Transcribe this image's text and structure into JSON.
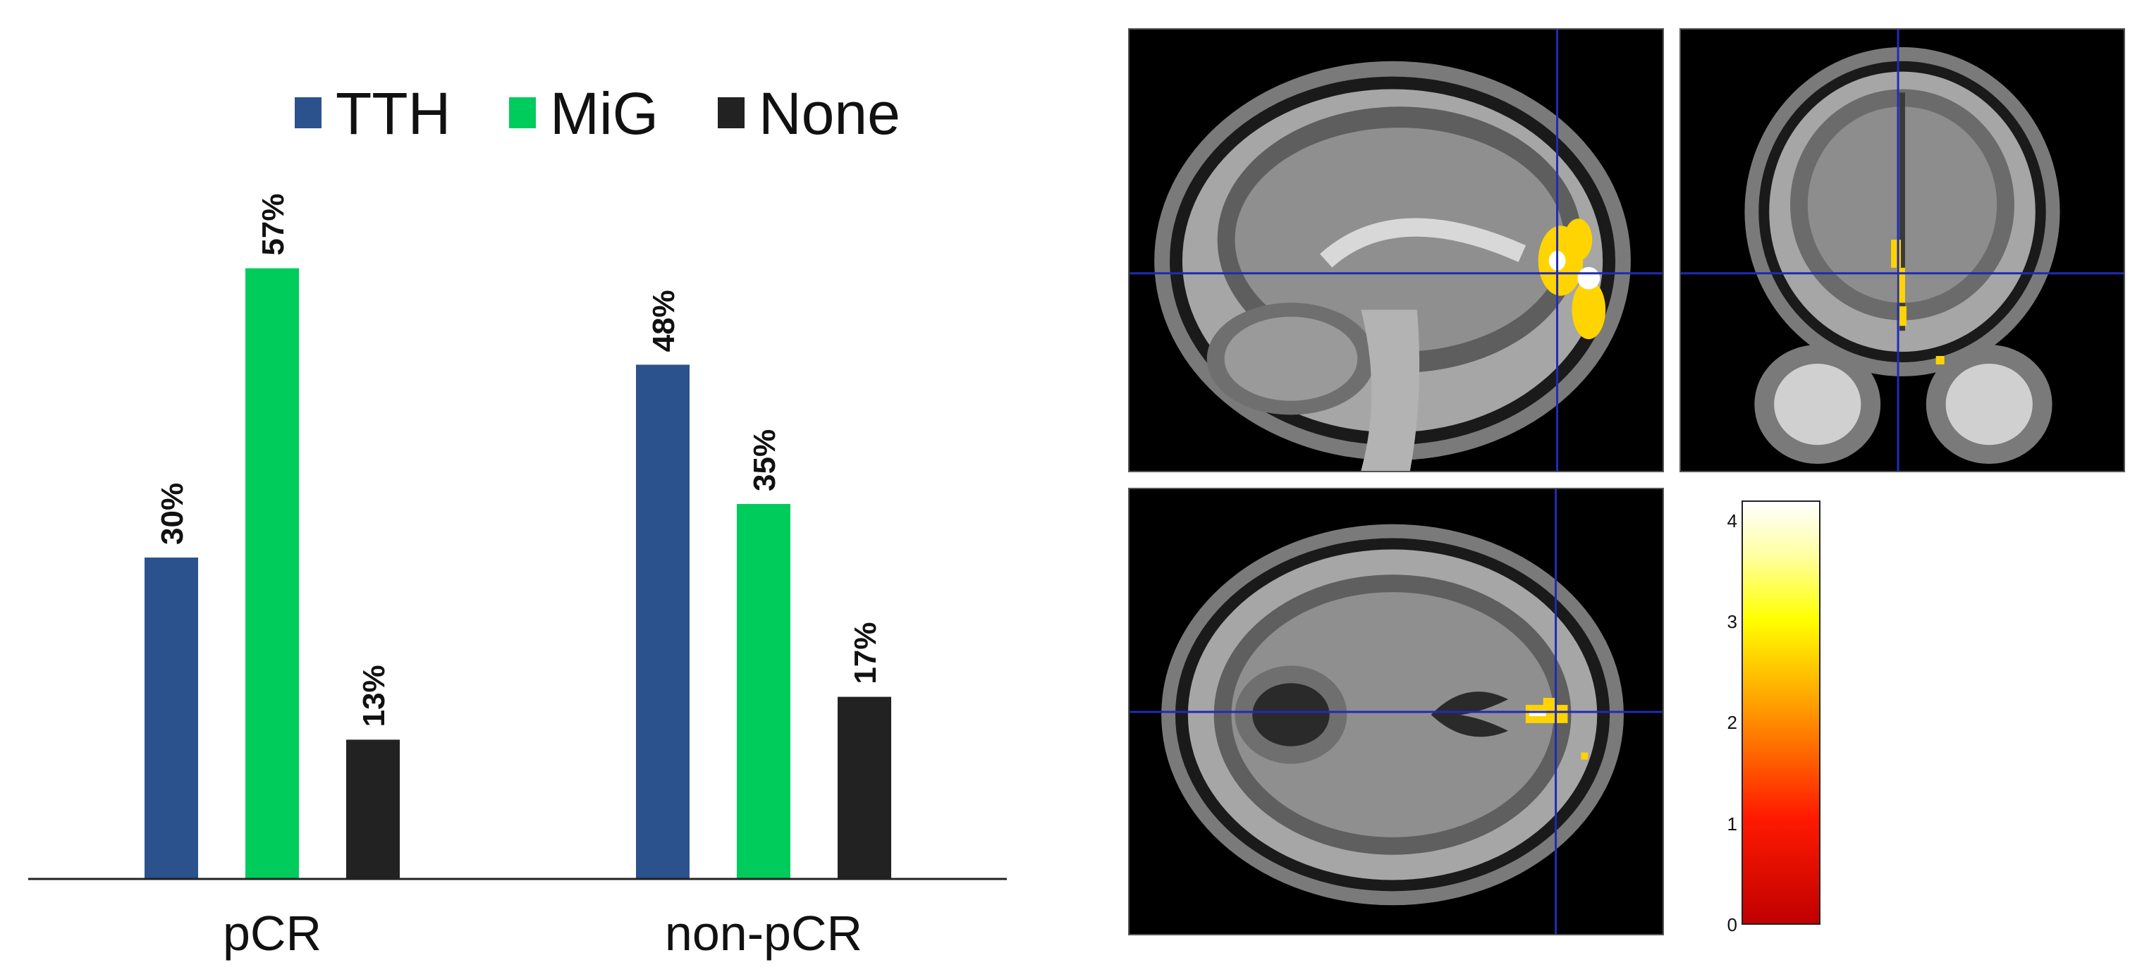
{
  "chart_data": {
    "type": "bar",
    "categories": [
      "pCR",
      "non-pCR"
    ],
    "series": [
      {
        "name": "TTH",
        "color": "#2c528d",
        "values": [
          30,
          48
        ],
        "labels": [
          "30%",
          "48%"
        ]
      },
      {
        "name": "MiG",
        "color": "#00cc5c",
        "values": [
          57,
          35
        ],
        "labels": [
          "57%",
          "35%"
        ]
      },
      {
        "name": "None",
        "color": "#222222",
        "values": [
          13,
          17
        ],
        "labels": [
          "13%",
          "17%"
        ]
      }
    ],
    "ylim": [
      0,
      70
    ],
    "legend_position": "top",
    "grid": false
  },
  "brain_figure": {
    "views": [
      "sagittal",
      "coronal",
      "axial"
    ],
    "crosshair_color": "#1f2bb8",
    "colorbar": {
      "ticks": [
        "0",
        "1",
        "2",
        "3",
        "4"
      ],
      "range": [
        0,
        4.2
      ]
    }
  }
}
